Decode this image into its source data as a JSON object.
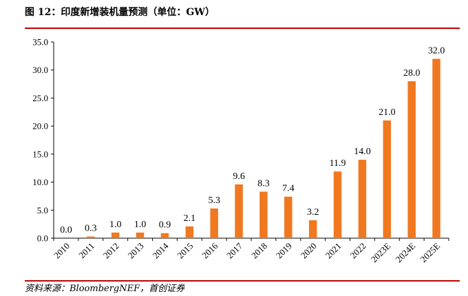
{
  "header": {
    "title": "图 12：印度新增装机量预测（单位：GW）"
  },
  "footer": {
    "source": "资料来源：BloombergNEF，首创证券"
  },
  "colors": {
    "bar": "#F07820",
    "rule": "#C00000",
    "axis": "#000000"
  },
  "chart_data": {
    "type": "bar",
    "title": "图 12：印度新增装机量预测（单位：GW）",
    "xlabel": "",
    "ylabel": "",
    "ylim": [
      0,
      35
    ],
    "yticks": [
      0,
      5,
      10,
      15,
      20,
      25,
      30,
      35
    ],
    "ytick_labels": [
      "0.0",
      "5.0",
      "10.0",
      "15.0",
      "20.0",
      "25.0",
      "30.0",
      "35.0"
    ],
    "categories": [
      "2010",
      "2011",
      "2012",
      "2013",
      "2014",
      "2015",
      "2016",
      "2017",
      "2018",
      "2019",
      "2020",
      "2021",
      "2022",
      "2023E",
      "2024E",
      "2025E"
    ],
    "values": [
      0.0,
      0.3,
      1.0,
      1.0,
      0.9,
      2.1,
      5.3,
      9.6,
      8.3,
      7.4,
      3.2,
      11.9,
      14.0,
      21.0,
      28.0,
      32.0
    ],
    "value_labels": [
      "0.0",
      "0.3",
      "1.0",
      "1.0",
      "0.9",
      "2.1",
      "5.3",
      "9.6",
      "8.3",
      "7.4",
      "3.2",
      "11.9",
      "14.0",
      "21.0",
      "28.0",
      "32.0"
    ],
    "grid": false,
    "legend": "none"
  }
}
